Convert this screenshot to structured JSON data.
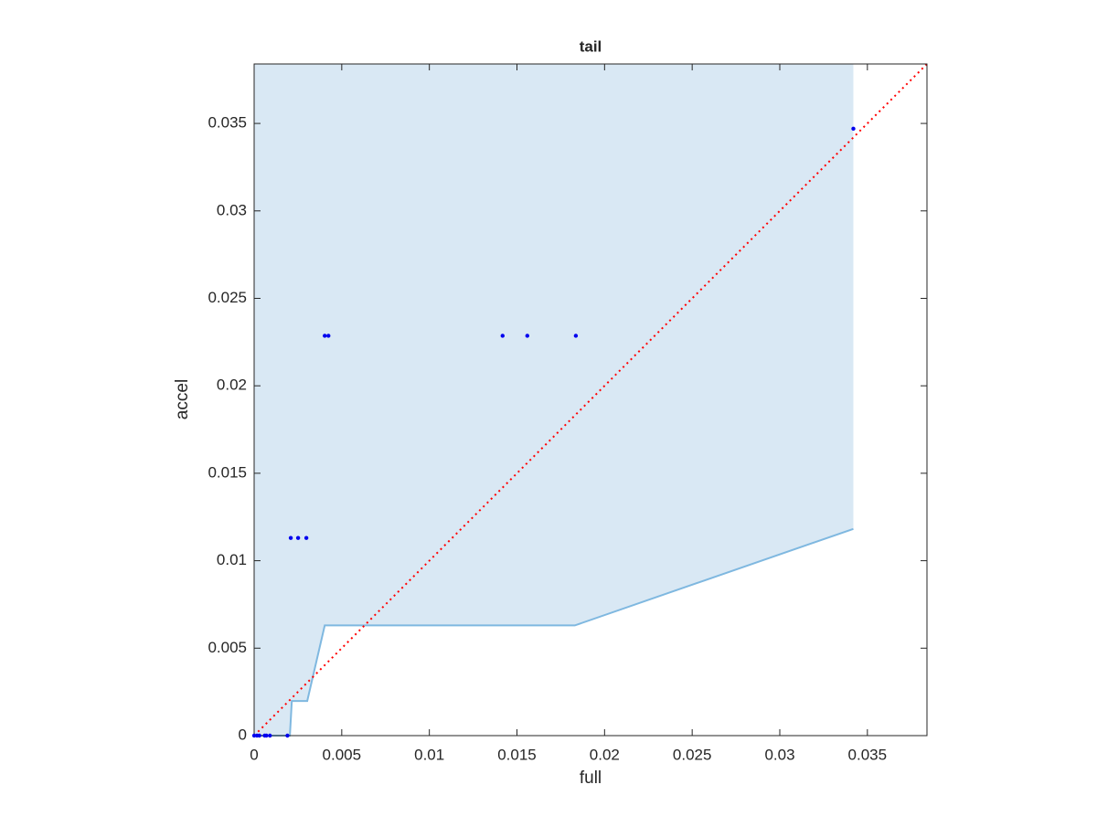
{
  "chart_data": {
    "type": "scatter",
    "title": "tail",
    "xlabel": "full",
    "ylabel": "accel",
    "xlim": [
      0,
      0.0384
    ],
    "ylim": [
      0,
      0.0384
    ],
    "xticks": [
      0,
      0.005,
      0.01,
      0.015,
      0.02,
      0.025,
      0.03,
      0.035
    ],
    "yticks": [
      0,
      0.005,
      0.01,
      0.015,
      0.02,
      0.025,
      0.03,
      0.035
    ],
    "x": [
      0,
      0.00016,
      0.0003,
      0.0006,
      0.0007,
      0.0009,
      0.0019,
      0.00209,
      0.00251,
      0.00298,
      0.00403,
      0.00424,
      0.01418,
      0.01559,
      0.01836,
      0.0342
    ],
    "y": [
      0,
      0,
      0,
      0,
      0,
      0,
      0,
      0.0113,
      0.0113,
      0.0113,
      0.02286,
      0.02286,
      0.02286,
      0.02286,
      0.02286,
      0.0347
    ],
    "color": "#0000ee",
    "band": {
      "x": [
        0,
        0.00204,
        0.00215,
        0.00303,
        0.00403,
        0.0183,
        0.0342
      ],
      "y": [
        0,
        0,
        0.00198,
        0.00198,
        0.0063,
        0.0063,
        0.01182
      ],
      "fill": "#d9e8f4",
      "edge": "#7fb8e0"
    },
    "reference": {
      "x": [
        0,
        0.0384
      ],
      "y": [
        0,
        0.0384
      ],
      "color": "#ff0000"
    }
  }
}
